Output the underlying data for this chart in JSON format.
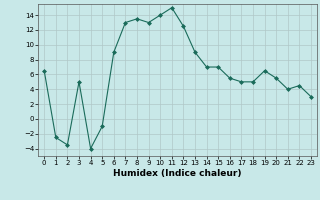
{
  "x": [
    0,
    1,
    2,
    3,
    4,
    5,
    6,
    7,
    8,
    9,
    10,
    11,
    12,
    13,
    14,
    15,
    16,
    17,
    18,
    19,
    20,
    21,
    22,
    23
  ],
  "y": [
    6.5,
    -2.5,
    -3.5,
    5,
    -4,
    -1,
    9,
    13,
    13.5,
    13,
    14,
    15,
    12.5,
    9,
    7,
    7,
    5.5,
    5,
    5,
    6.5,
    5.5,
    4,
    4.5,
    3
  ],
  "line_color": "#1a6b5a",
  "marker": "D",
  "marker_size": 2,
  "bg_color": "#c8e8e8",
  "grid_color": "#b0c8c8",
  "xlabel": "Humidex (Indice chaleur)",
  "xlim": [
    -0.5,
    23.5
  ],
  "ylim": [
    -5,
    15.5
  ],
  "yticks": [
    -4,
    -2,
    0,
    2,
    4,
    6,
    8,
    10,
    12,
    14
  ],
  "xticks": [
    0,
    1,
    2,
    3,
    4,
    5,
    6,
    7,
    8,
    9,
    10,
    11,
    12,
    13,
    14,
    15,
    16,
    17,
    18,
    19,
    20,
    21,
    22,
    23
  ],
  "tick_fontsize": 5,
  "xlabel_fontsize": 6.5
}
